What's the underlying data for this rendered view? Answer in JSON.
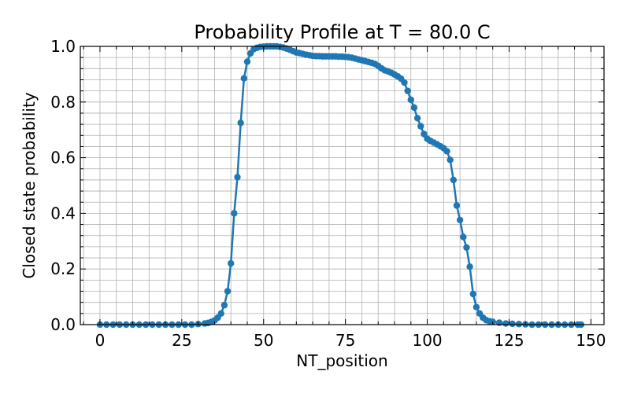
{
  "chart_data": {
    "type": "line",
    "title": "Probability Profile at T = 80.0 C",
    "xlabel": "NT_position",
    "ylabel": "Closed state probability",
    "xlim": [
      -6,
      154
    ],
    "ylim": [
      0,
      1.0
    ],
    "x_ticks": [
      0,
      25,
      50,
      75,
      100,
      125,
      150
    ],
    "y_ticks": [
      0.0,
      0.2,
      0.4,
      0.6,
      0.8,
      1.0
    ],
    "x_tick_labels": [
      "0",
      "25",
      "50",
      "75",
      "100",
      "125",
      "150"
    ],
    "y_tick_labels": [
      "0.0",
      "0.2",
      "0.4",
      "0.6",
      "0.8",
      "1.0"
    ],
    "grid": true,
    "minor_grid": true,
    "color": "#1f77b4",
    "series": [
      {
        "marker": "circle",
        "points": [
          [
            0,
            0.0
          ],
          [
            2,
            0.0
          ],
          [
            4,
            0.0
          ],
          [
            6,
            0.0
          ],
          [
            8,
            0.0
          ],
          [
            10,
            0.0
          ],
          [
            12,
            0.0
          ],
          [
            14,
            0.0
          ],
          [
            16,
            0.0
          ],
          [
            18,
            0.0
          ],
          [
            20,
            0.0
          ],
          [
            22,
            0.0
          ],
          [
            24,
            0.0
          ],
          [
            26,
            0.0
          ],
          [
            28,
            0.0
          ],
          [
            30,
            0.002
          ],
          [
            32,
            0.004
          ],
          [
            33,
            0.006
          ],
          [
            34,
            0.01
          ],
          [
            35,
            0.015
          ],
          [
            36,
            0.025
          ],
          [
            37,
            0.04
          ],
          [
            38,
            0.07
          ],
          [
            39,
            0.12
          ],
          [
            40,
            0.22
          ],
          [
            41,
            0.4
          ],
          [
            42,
            0.53
          ],
          [
            43,
            0.725
          ],
          [
            44,
            0.885
          ],
          [
            45,
            0.945
          ],
          [
            46,
            0.975
          ],
          [
            47,
            0.99
          ],
          [
            48,
            0.995
          ],
          [
            49,
            0.998
          ],
          [
            50,
            0.999
          ],
          [
            51,
            1.0
          ],
          [
            52,
            1.0
          ],
          [
            53,
            1.0
          ],
          [
            54,
            1.0
          ],
          [
            55,
            0.998
          ],
          [
            56,
            0.996
          ],
          [
            57,
            0.992
          ],
          [
            58,
            0.988
          ],
          [
            59,
            0.983
          ],
          [
            60,
            0.978
          ],
          [
            61,
            0.976
          ],
          [
            62,
            0.973
          ],
          [
            63,
            0.97
          ],
          [
            64,
            0.968
          ],
          [
            65,
            0.966
          ],
          [
            66,
            0.965
          ],
          [
            67,
            0.965
          ],
          [
            68,
            0.964
          ],
          [
            69,
            0.964
          ],
          [
            70,
            0.964
          ],
          [
            71,
            0.964
          ],
          [
            72,
            0.964
          ],
          [
            73,
            0.963
          ],
          [
            74,
            0.963
          ],
          [
            75,
            0.962
          ],
          [
            76,
            0.961
          ],
          [
            77,
            0.959
          ],
          [
            78,
            0.956
          ],
          [
            79,
            0.953
          ],
          [
            80,
            0.95
          ],
          [
            81,
            0.947
          ],
          [
            82,
            0.944
          ],
          [
            83,
            0.941
          ],
          [
            84,
            0.937
          ],
          [
            85,
            0.93
          ],
          [
            86,
            0.921
          ],
          [
            87,
            0.914
          ],
          [
            88,
            0.91
          ],
          [
            89,
            0.905
          ],
          [
            90,
            0.899
          ],
          [
            91,
            0.892
          ],
          [
            92,
            0.884
          ],
          [
            93,
            0.87
          ],
          [
            94,
            0.84
          ],
          [
            95,
            0.808
          ],
          [
            96,
            0.78
          ],
          [
            97,
            0.742
          ],
          [
            98,
            0.713
          ],
          [
            99,
            0.685
          ],
          [
            100,
            0.668
          ],
          [
            101,
            0.66
          ],
          [
            102,
            0.654
          ],
          [
            103,
            0.648
          ],
          [
            104,
            0.641
          ],
          [
            105,
            0.634
          ],
          [
            106,
            0.623
          ],
          [
            107,
            0.592
          ],
          [
            108,
            0.52
          ],
          [
            109,
            0.428
          ],
          [
            110,
            0.376
          ],
          [
            111,
            0.315
          ],
          [
            112,
            0.277
          ],
          [
            113,
            0.208
          ],
          [
            114,
            0.11
          ],
          [
            115,
            0.063
          ],
          [
            116,
            0.04
          ],
          [
            117,
            0.025
          ],
          [
            118,
            0.016
          ],
          [
            119,
            0.012
          ],
          [
            120,
            0.01
          ],
          [
            122,
            0.007
          ],
          [
            124,
            0.004
          ],
          [
            126,
            0.003
          ],
          [
            128,
            0.002
          ],
          [
            130,
            0.001
          ],
          [
            132,
            0.0
          ],
          [
            134,
            0.0
          ],
          [
            136,
            0.0
          ],
          [
            138,
            0.0
          ],
          [
            140,
            0.0
          ],
          [
            142,
            0.0
          ],
          [
            144,
            0.0
          ],
          [
            146,
            0.0
          ],
          [
            147,
            0.0
          ]
        ]
      }
    ]
  }
}
